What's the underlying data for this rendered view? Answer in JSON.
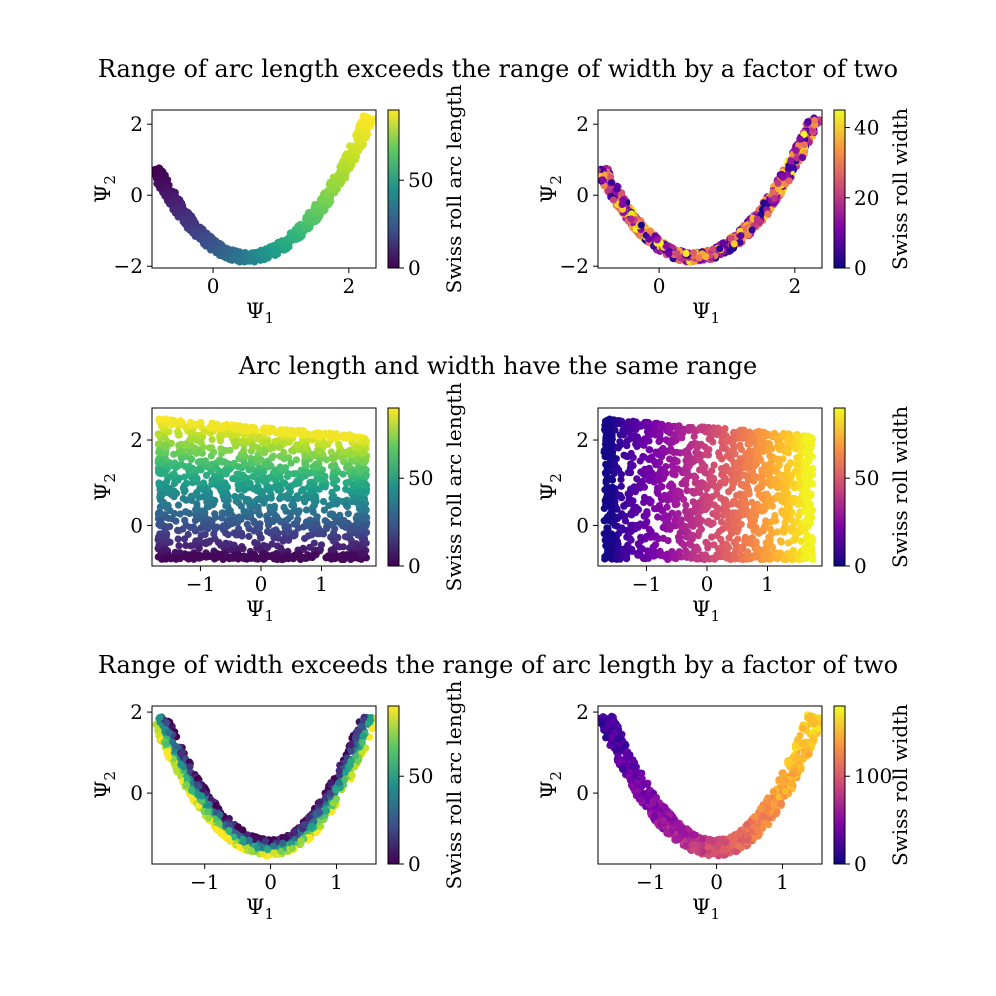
{
  "figure": {
    "row_titles": [
      "Range of arc length exceeds the range of width by a factor of two",
      "Arc length and width have the same range",
      "Range of width exceeds the range of arc length by a factor of two"
    ]
  },
  "chart_data": [
    {
      "type": "scatter",
      "row": 0,
      "col": 0,
      "shape": "parabola",
      "xlabel": "Ψ",
      "xlabel_sub": "1",
      "ylabel": "Ψ",
      "ylabel_sub": "2",
      "xlim": [
        -0.9,
        2.4
      ],
      "ylim": [
        -2.05,
        2.4
      ],
      "xticks": [
        0,
        2
      ],
      "yticks": [
        -2,
        0,
        2
      ],
      "xtick_labels": [
        "0",
        "2"
      ],
      "ytick_labels": [
        "−2",
        "0",
        "2"
      ],
      "colorbar": {
        "label": "Swiss roll arc length",
        "colormap": "viridis",
        "range": [
          0,
          90
        ],
        "ticks": [
          0,
          50
        ],
        "tick_labels": [
          "0",
          "50"
        ]
      },
      "color_by": "arc",
      "curve": {
        "x_range": [
          -0.85,
          2.3
        ],
        "vertex": [
          0.5,
          -1.75
        ],
        "branch_ends": [
          [
            -0.85,
            0.75
          ],
          [
            2.3,
            2.2
          ]
        ],
        "spread": 0.09
      }
    },
    {
      "type": "scatter",
      "row": 0,
      "col": 1,
      "shape": "parabola",
      "xlabel": "Ψ",
      "xlabel_sub": "1",
      "ylabel": "Ψ",
      "ylabel_sub": "2",
      "xlim": [
        -0.9,
        2.4
      ],
      "ylim": [
        -2.05,
        2.4
      ],
      "xticks": [
        0,
        2
      ],
      "yticks": [
        -2,
        0,
        2
      ],
      "xtick_labels": [
        "0",
        "2"
      ],
      "ytick_labels": [
        "−2",
        "0",
        "2"
      ],
      "colorbar": {
        "label": "Swiss roll width",
        "colormap": "plasma",
        "range": [
          0,
          45
        ],
        "ticks": [
          0,
          20,
          40
        ],
        "tick_labels": [
          "0",
          "20",
          "40"
        ]
      },
      "color_by": "width",
      "curve": {
        "x_range": [
          -0.85,
          2.3
        ],
        "vertex": [
          0.5,
          -1.75
        ],
        "branch_ends": [
          [
            -0.85,
            0.75
          ],
          [
            2.3,
            2.2
          ]
        ],
        "spread": 0.09
      }
    },
    {
      "type": "scatter",
      "row": 1,
      "col": 0,
      "shape": "rectangle",
      "xlabel": "Ψ",
      "xlabel_sub": "1",
      "ylabel": "Ψ",
      "ylabel_sub": "2",
      "xlim": [
        -1.8,
        1.9
      ],
      "ylim": [
        -0.95,
        2.75
      ],
      "xticks": [
        -1,
        0,
        1
      ],
      "yticks": [
        0,
        2
      ],
      "xtick_labels": [
        "−1",
        "0",
        "1"
      ],
      "ytick_labels": [
        "0",
        "2"
      ],
      "colorbar": {
        "label": "Swiss roll arc length",
        "colormap": "viridis",
        "range": [
          0,
          90
        ],
        "ticks": [
          0,
          50
        ],
        "tick_labels": [
          "0",
          "50"
        ]
      },
      "color_by": "arc",
      "region": {
        "x_range": [
          -1.7,
          1.75
        ],
        "y_bottom": -0.8,
        "y_top_left": 2.5,
        "y_top_right": 2.1
      }
    },
    {
      "type": "scatter",
      "row": 1,
      "col": 1,
      "shape": "rectangle",
      "xlabel": "Ψ",
      "xlabel_sub": "1",
      "ylabel": "Ψ",
      "ylabel_sub": "2",
      "xlim": [
        -1.8,
        1.9
      ],
      "ylim": [
        -0.95,
        2.75
      ],
      "xticks": [
        -1,
        0,
        1
      ],
      "yticks": [
        0,
        2
      ],
      "xtick_labels": [
        "−1",
        "0",
        "1"
      ],
      "ytick_labels": [
        "0",
        "2"
      ],
      "colorbar": {
        "label": "Swiss roll width",
        "colormap": "plasma",
        "range": [
          0,
          90
        ],
        "ticks": [
          0,
          50
        ],
        "tick_labels": [
          "0",
          "50"
        ]
      },
      "color_by": "width",
      "region": {
        "x_range": [
          -1.7,
          1.75
        ],
        "y_bottom": -0.8,
        "y_top_left": 2.5,
        "y_top_right": 2.1
      }
    },
    {
      "type": "scatter",
      "row": 2,
      "col": 0,
      "shape": "parabola",
      "xlabel": "Ψ",
      "xlabel_sub": "1",
      "ylabel": "Ψ",
      "ylabel_sub": "2",
      "xlim": [
        -1.8,
        1.6
      ],
      "ylim": [
        -1.75,
        2.15
      ],
      "xticks": [
        -1,
        0,
        1
      ],
      "yticks": [
        0,
        2
      ],
      "xtick_labels": [
        "−1",
        "0",
        "1"
      ],
      "ytick_labels": [
        "0",
        "2"
      ],
      "colorbar": {
        "label": "Swiss roll arc length",
        "colormap": "viridis",
        "range": [
          0,
          90
        ],
        "ticks": [
          0,
          50
        ],
        "tick_labels": [
          "0",
          "50"
        ]
      },
      "color_by": "arc_across",
      "curve": {
        "x_range": [
          -1.7,
          1.5
        ],
        "vertex": [
          0.0,
          -1.35
        ],
        "branch_ends": [
          [
            -1.7,
            1.9
          ],
          [
            1.5,
            1.9
          ]
        ],
        "spread": 0.13
      }
    },
    {
      "type": "scatter",
      "row": 2,
      "col": 1,
      "shape": "parabola",
      "xlabel": "Ψ",
      "xlabel_sub": "1",
      "ylabel": "Ψ",
      "ylabel_sub": "2",
      "xlim": [
        -1.8,
        1.6
      ],
      "ylim": [
        -1.75,
        2.15
      ],
      "xticks": [
        -1,
        0,
        1
      ],
      "yticks": [
        0,
        2
      ],
      "xtick_labels": [
        "−1",
        "0",
        "1"
      ],
      "ytick_labels": [
        "0",
        "2"
      ],
      "colorbar": {
        "label": "Swiss roll width",
        "colormap": "plasma",
        "range": [
          0,
          180
        ],
        "ticks": [
          0,
          100
        ],
        "tick_labels": [
          "0",
          "100"
        ]
      },
      "color_by": "width_along",
      "curve": {
        "x_range": [
          -1.7,
          1.5
        ],
        "vertex": [
          0.0,
          -1.35
        ],
        "branch_ends": [
          [
            -1.7,
            1.9
          ],
          [
            1.5,
            1.9
          ]
        ],
        "spread": 0.13
      }
    }
  ]
}
